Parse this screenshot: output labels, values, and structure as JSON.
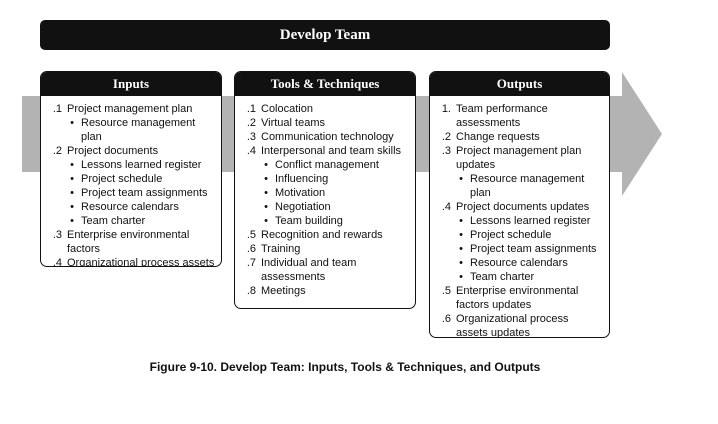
{
  "title": "Develop Team",
  "colors": {
    "header_bg": "#111111",
    "arrow": "#b3b3b3"
  },
  "columns": [
    {
      "key": "inputs",
      "header": "Inputs",
      "items": [
        {
          "num": ".1",
          "text": "Project management plan",
          "subs": [
            "Resource management plan"
          ]
        },
        {
          "num": ".2",
          "text": "Project documents",
          "subs": [
            "Lessons learned register",
            "Project schedule",
            "Project team assignments",
            "Resource calendars",
            "Team charter"
          ]
        },
        {
          "num": ".3",
          "text": "Enterprise environmental factors",
          "subs": []
        },
        {
          "num": ".4",
          "text": "Organizational process assets",
          "subs": []
        }
      ]
    },
    {
      "key": "tools",
      "header": "Tools & Techniques",
      "items": [
        {
          "num": ".1",
          "text": "Colocation",
          "subs": []
        },
        {
          "num": ".2",
          "text": "Virtual teams",
          "subs": []
        },
        {
          "num": ".3",
          "text": "Communication technology",
          "subs": []
        },
        {
          "num": ".4",
          "text": "Interpersonal and team skills",
          "subs": [
            "Conflict management",
            "Influencing",
            "Motivation",
            "Negotiation",
            "Team building"
          ]
        },
        {
          "num": ".5",
          "text": "Recognition and rewards",
          "subs": []
        },
        {
          "num": ".6",
          "text": "Training",
          "subs": []
        },
        {
          "num": ".7",
          "text": "Individual and team assessments",
          "subs": []
        },
        {
          "num": ".8",
          "text": "Meetings",
          "subs": []
        }
      ]
    },
    {
      "key": "outputs",
      "header": "Outputs",
      "items": [
        {
          "num": "1.",
          "text": "Team performance assessments",
          "subs": []
        },
        {
          "num": ".2",
          "text": "Change requests",
          "subs": []
        },
        {
          "num": ".3",
          "text": "Project management plan updates",
          "subs": [
            "Resource management plan"
          ]
        },
        {
          "num": ".4",
          "text": "Project documents updates",
          "subs": [
            "Lessons learned register",
            "Project schedule",
            "Project team assignments",
            "Resource calendars",
            "Team charter"
          ]
        },
        {
          "num": ".5",
          "text": "Enterprise environmental factors updates",
          "subs": []
        },
        {
          "num": ".6",
          "text": "Organizational process assets updates",
          "subs": []
        }
      ]
    }
  ],
  "caption": "Figure 9-10. Develop Team: Inputs, Tools & Techniques, and Outputs"
}
